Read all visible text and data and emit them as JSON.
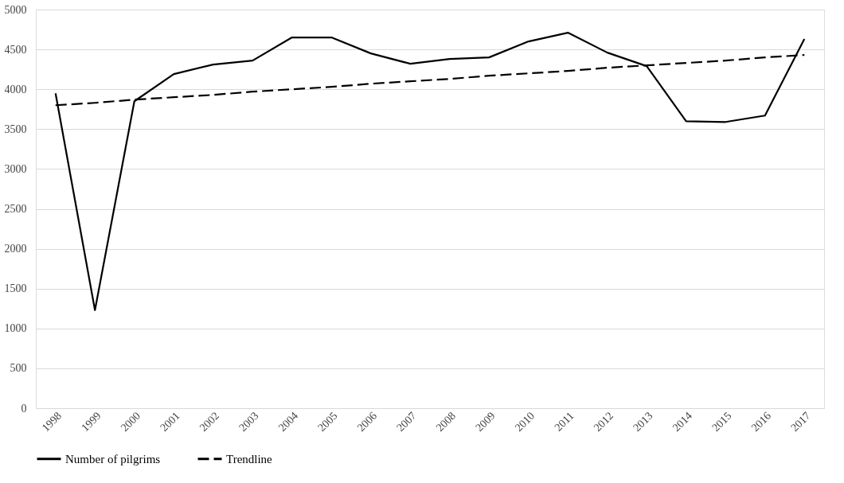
{
  "chart_data": {
    "type": "line",
    "categories": [
      "1998",
      "1999",
      "2000",
      "2001",
      "2002",
      "2003",
      "2004",
      "2005",
      "2006",
      "2007",
      "2008",
      "2009",
      "2010",
      "2011",
      "2012",
      "2013",
      "2014",
      "2015",
      "2016",
      "2017"
    ],
    "series": [
      {
        "name": "Number of pilgrims",
        "color": "#000000",
        "values": [
          3950,
          1230,
          3850,
          4190,
          4310,
          4360,
          4650,
          4650,
          4450,
          4320,
          4380,
          4400,
          4600,
          4710,
          4460,
          4290,
          3600,
          3590,
          3670,
          4630
        ],
        "line_style": "solid"
      },
      {
        "name": "Trendline",
        "color": "#000000",
        "type": "line",
        "values": [
          3800,
          3830,
          3870,
          3900,
          3930,
          3970,
          4000,
          4030,
          4070,
          4100,
          4130,
          4170,
          4200,
          4230,
          4270,
          4300,
          4330,
          4360,
          4400,
          4430
        ],
        "line_style": "dashed"
      }
    ],
    "ylim": [
      0,
      5000
    ],
    "yticks": [
      0,
      500,
      1000,
      1500,
      2000,
      2500,
      3000,
      3500,
      4000,
      4500,
      5000
    ],
    "grid": "y",
    "legend": "bottom",
    "marker": "none"
  }
}
